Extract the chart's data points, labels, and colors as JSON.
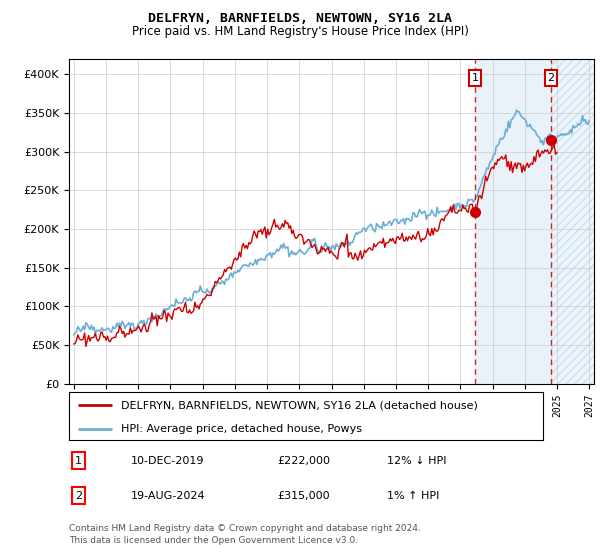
{
  "title": "DELFRYN, BARNFIELDS, NEWTOWN, SY16 2LA",
  "subtitle": "Price paid vs. HM Land Registry's House Price Index (HPI)",
  "legend_line1": "DELFRYN, BARNFIELDS, NEWTOWN, SY16 2LA (detached house)",
  "legend_line2": "HPI: Average price, detached house, Powys",
  "annotation1_date": "10-DEC-2019",
  "annotation1_price": "£222,000",
  "annotation1_hpi": "12% ↓ HPI",
  "annotation2_date": "19-AUG-2024",
  "annotation2_price": "£315,000",
  "annotation2_hpi": "1% ↑ HPI",
  "footer": "Contains HM Land Registry data © Crown copyright and database right 2024.\nThis data is licensed under the Open Government Licence v3.0.",
  "ylim": [
    0,
    420000
  ],
  "yticks": [
    0,
    50000,
    100000,
    150000,
    200000,
    250000,
    300000,
    350000,
    400000
  ],
  "hpi_color": "#6baed6",
  "price_color": "#cc0000",
  "marker1_x": 2019.92,
  "marker1_y": 222000,
  "marker2_x": 2024.63,
  "marker2_y": 315000,
  "vline1_x": 2019.92,
  "vline2_x": 2024.63,
  "xmin": 1995.0,
  "xmax": 2027.0
}
